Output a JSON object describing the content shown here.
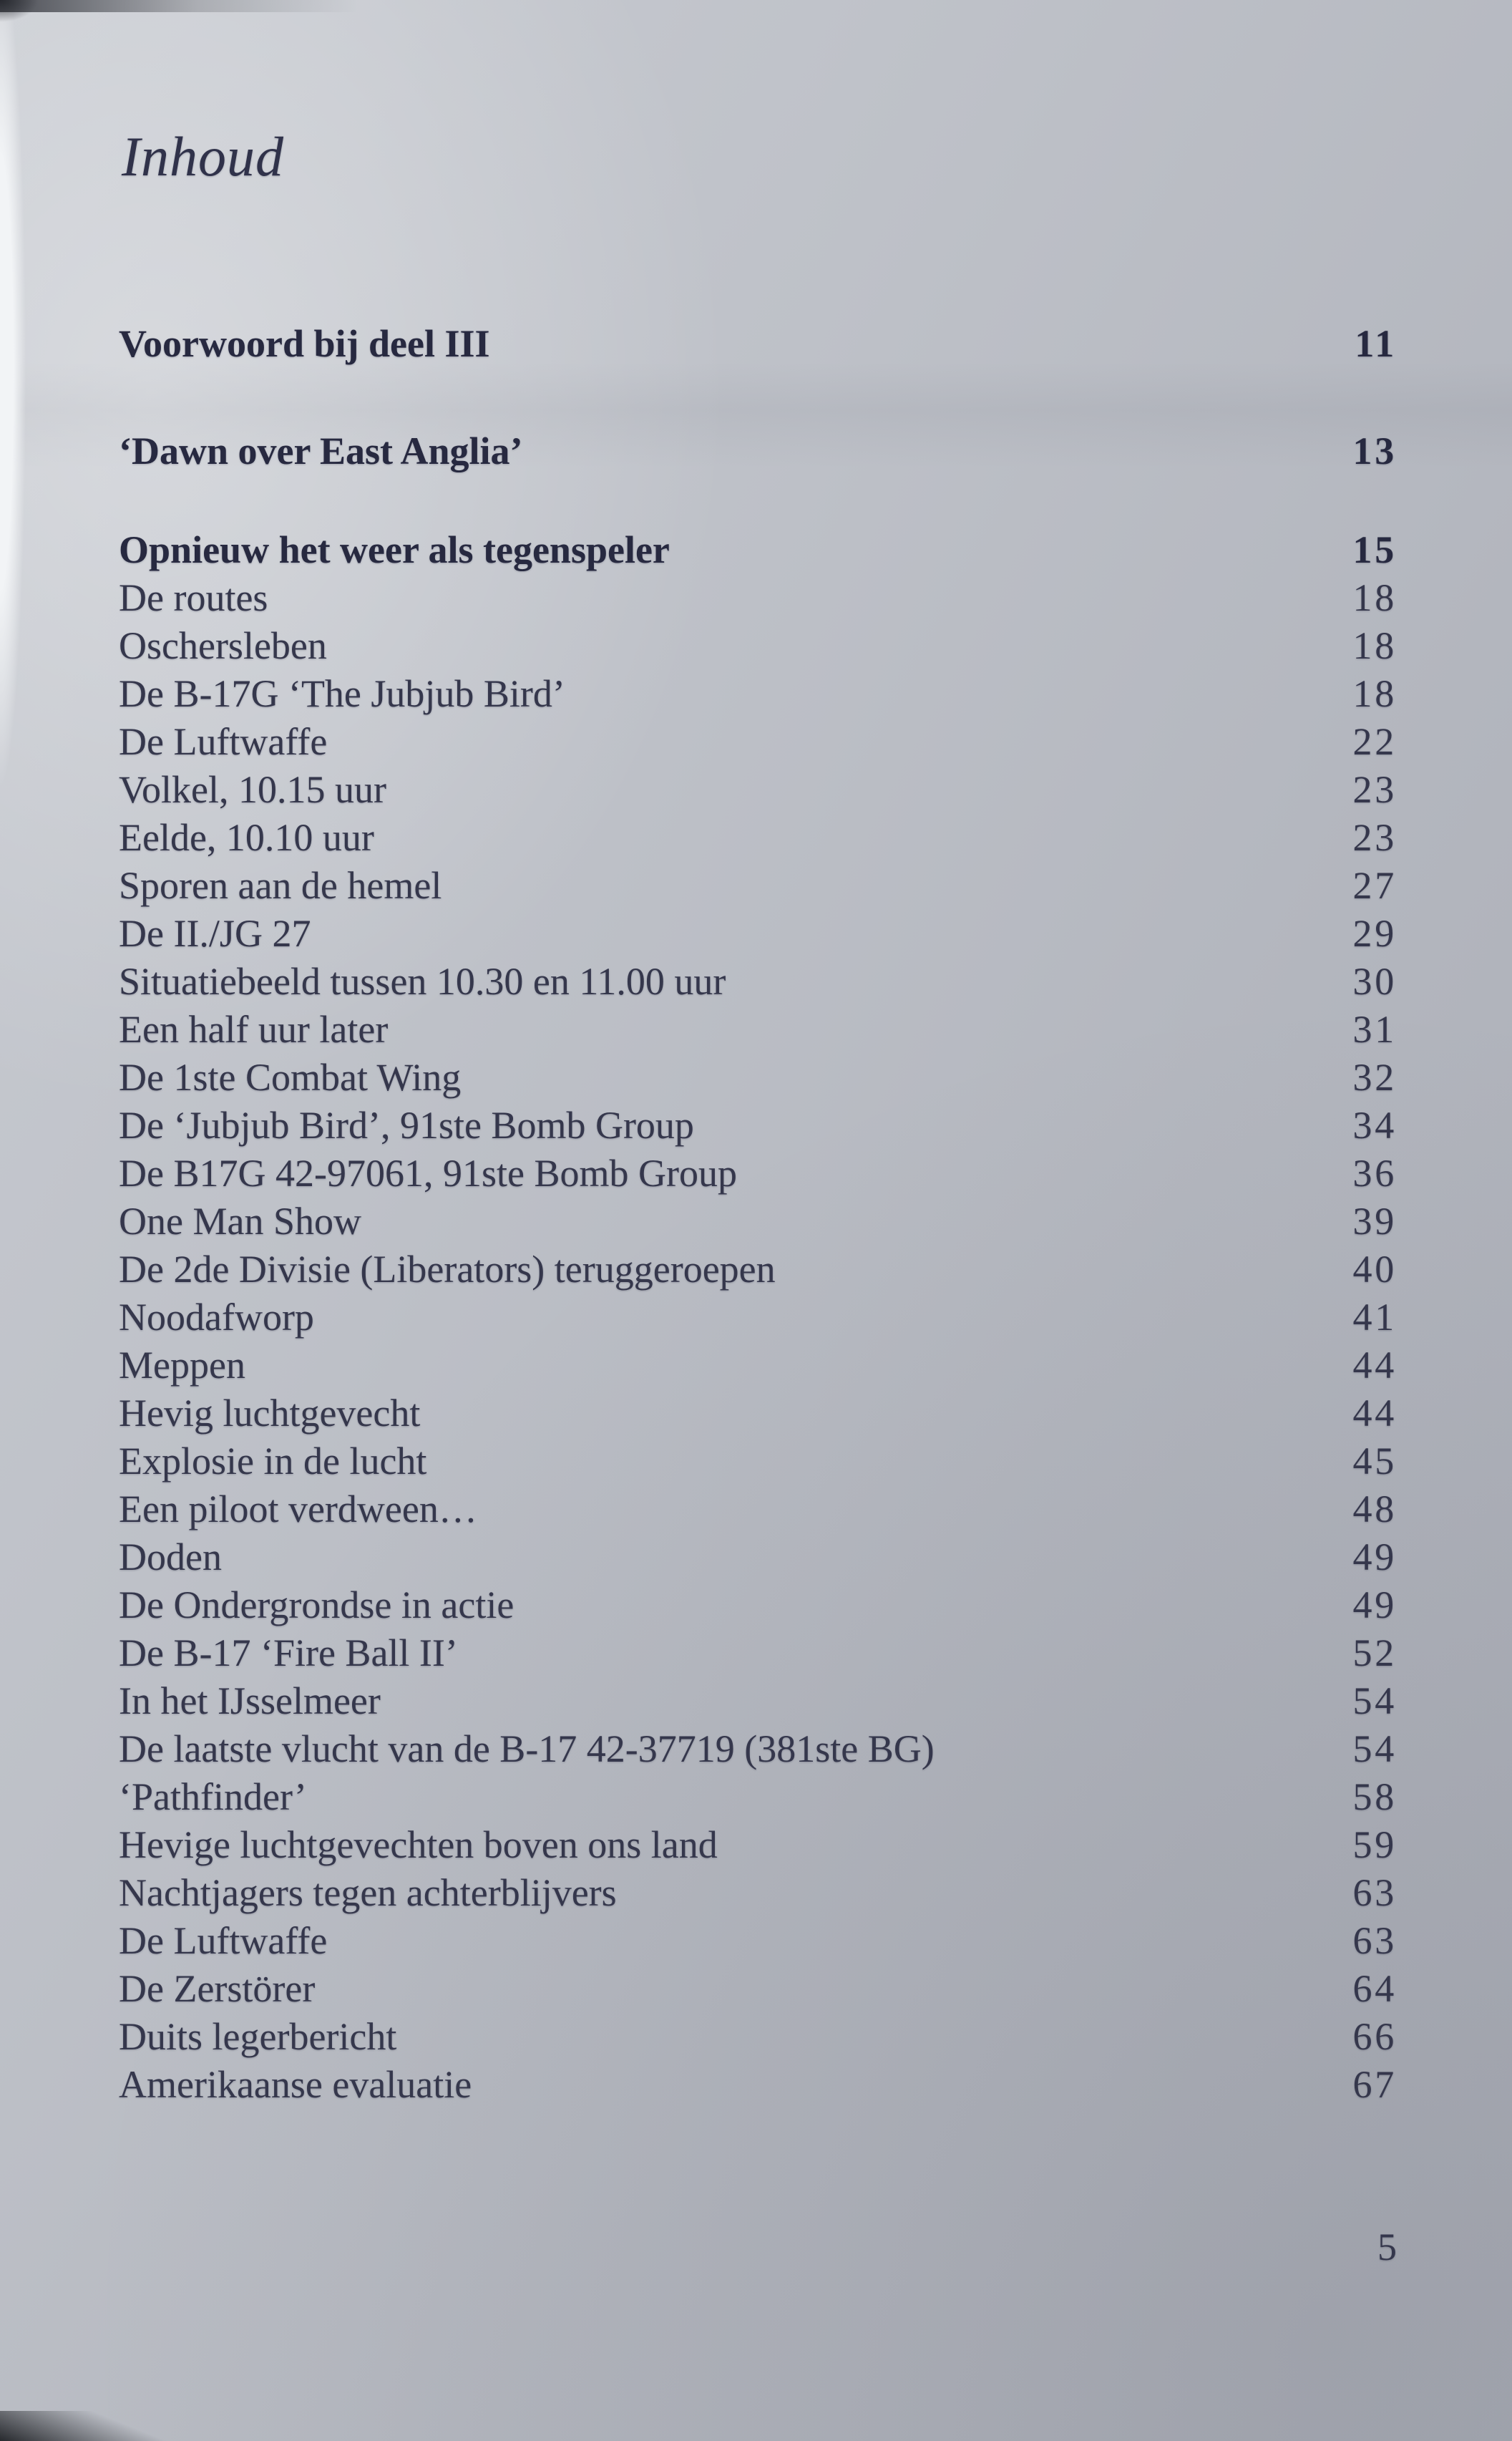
{
  "page": {
    "title": "Inhoud",
    "page_number": "5"
  },
  "colors": {
    "paper": "#b7bac1",
    "paper_highlight": "#f2f4f6",
    "ink": "#35374c",
    "ink_bold": "#272940"
  },
  "toc": {
    "entries": [
      {
        "label": "Voorwoord bij deel III",
        "page": "11",
        "bold": true,
        "gap": "none"
      },
      {
        "label": "‘Dawn over East Anglia’",
        "page": "13",
        "bold": true,
        "gap": "large"
      },
      {
        "label": "Opnieuw het weer als tegenspeler",
        "page": "15",
        "bold": true,
        "gap": "medium"
      },
      {
        "label": "De routes",
        "page": "18"
      },
      {
        "label": "Oschersleben",
        "page": "18"
      },
      {
        "label": "De B-17G ‘The Jubjub Bird’",
        "page": "18"
      },
      {
        "label": "De Luftwaffe",
        "page": "22"
      },
      {
        "label": "Volkel, 10.15 uur",
        "page": "23"
      },
      {
        "label": "Eelde, 10.10 uur",
        "page": "23"
      },
      {
        "label": "Sporen aan de hemel",
        "page": "27"
      },
      {
        "label": "De II./JG 27",
        "page": "29"
      },
      {
        "label": "Situatiebeeld tussen 10.30 en 11.00 uur",
        "page": "30"
      },
      {
        "label": "Een half uur later",
        "page": "31"
      },
      {
        "label": "De 1ste Combat Wing",
        "page": "32"
      },
      {
        "label": "De ‘Jubjub Bird’, 91ste Bomb Group",
        "page": "34"
      },
      {
        "label": "De B17G 42-97061, 91ste Bomb Group",
        "page": "36"
      },
      {
        "label": "One Man Show",
        "page": "39"
      },
      {
        "label": "De 2de Divisie (Liberators) teruggeroepen",
        "page": "40"
      },
      {
        "label": "Noodafworp",
        "page": "41"
      },
      {
        "label": "Meppen",
        "page": "44"
      },
      {
        "label": "Hevig luchtgevecht",
        "page": "44"
      },
      {
        "label": "Explosie in de lucht",
        "page": "45"
      },
      {
        "label": "Een piloot verdween…",
        "page": "48"
      },
      {
        "label": "Doden",
        "page": "49"
      },
      {
        "label": "De Ondergrondse in actie",
        "page": "49"
      },
      {
        "label": "De B-17 ‘Fire Ball II’",
        "page": "52"
      },
      {
        "label": "In het IJsselmeer",
        "page": "54"
      },
      {
        "label": "De laatste vlucht van de B-17 42-37719 (381ste BG)",
        "page": "54"
      },
      {
        "label": "‘Pathfinder’",
        "page": "58"
      },
      {
        "label": "Hevige luchtgevechten boven ons land",
        "page": "59"
      },
      {
        "label": "Nachtjagers tegen achterblijvers",
        "page": "63"
      },
      {
        "label": "De Luftwaffe",
        "page": "63"
      },
      {
        "label": "De Zerstörer",
        "page": "64"
      },
      {
        "label": "Duits legerbericht",
        "page": "66"
      },
      {
        "label": "Amerikaanse evaluatie",
        "page": "67"
      }
    ]
  }
}
